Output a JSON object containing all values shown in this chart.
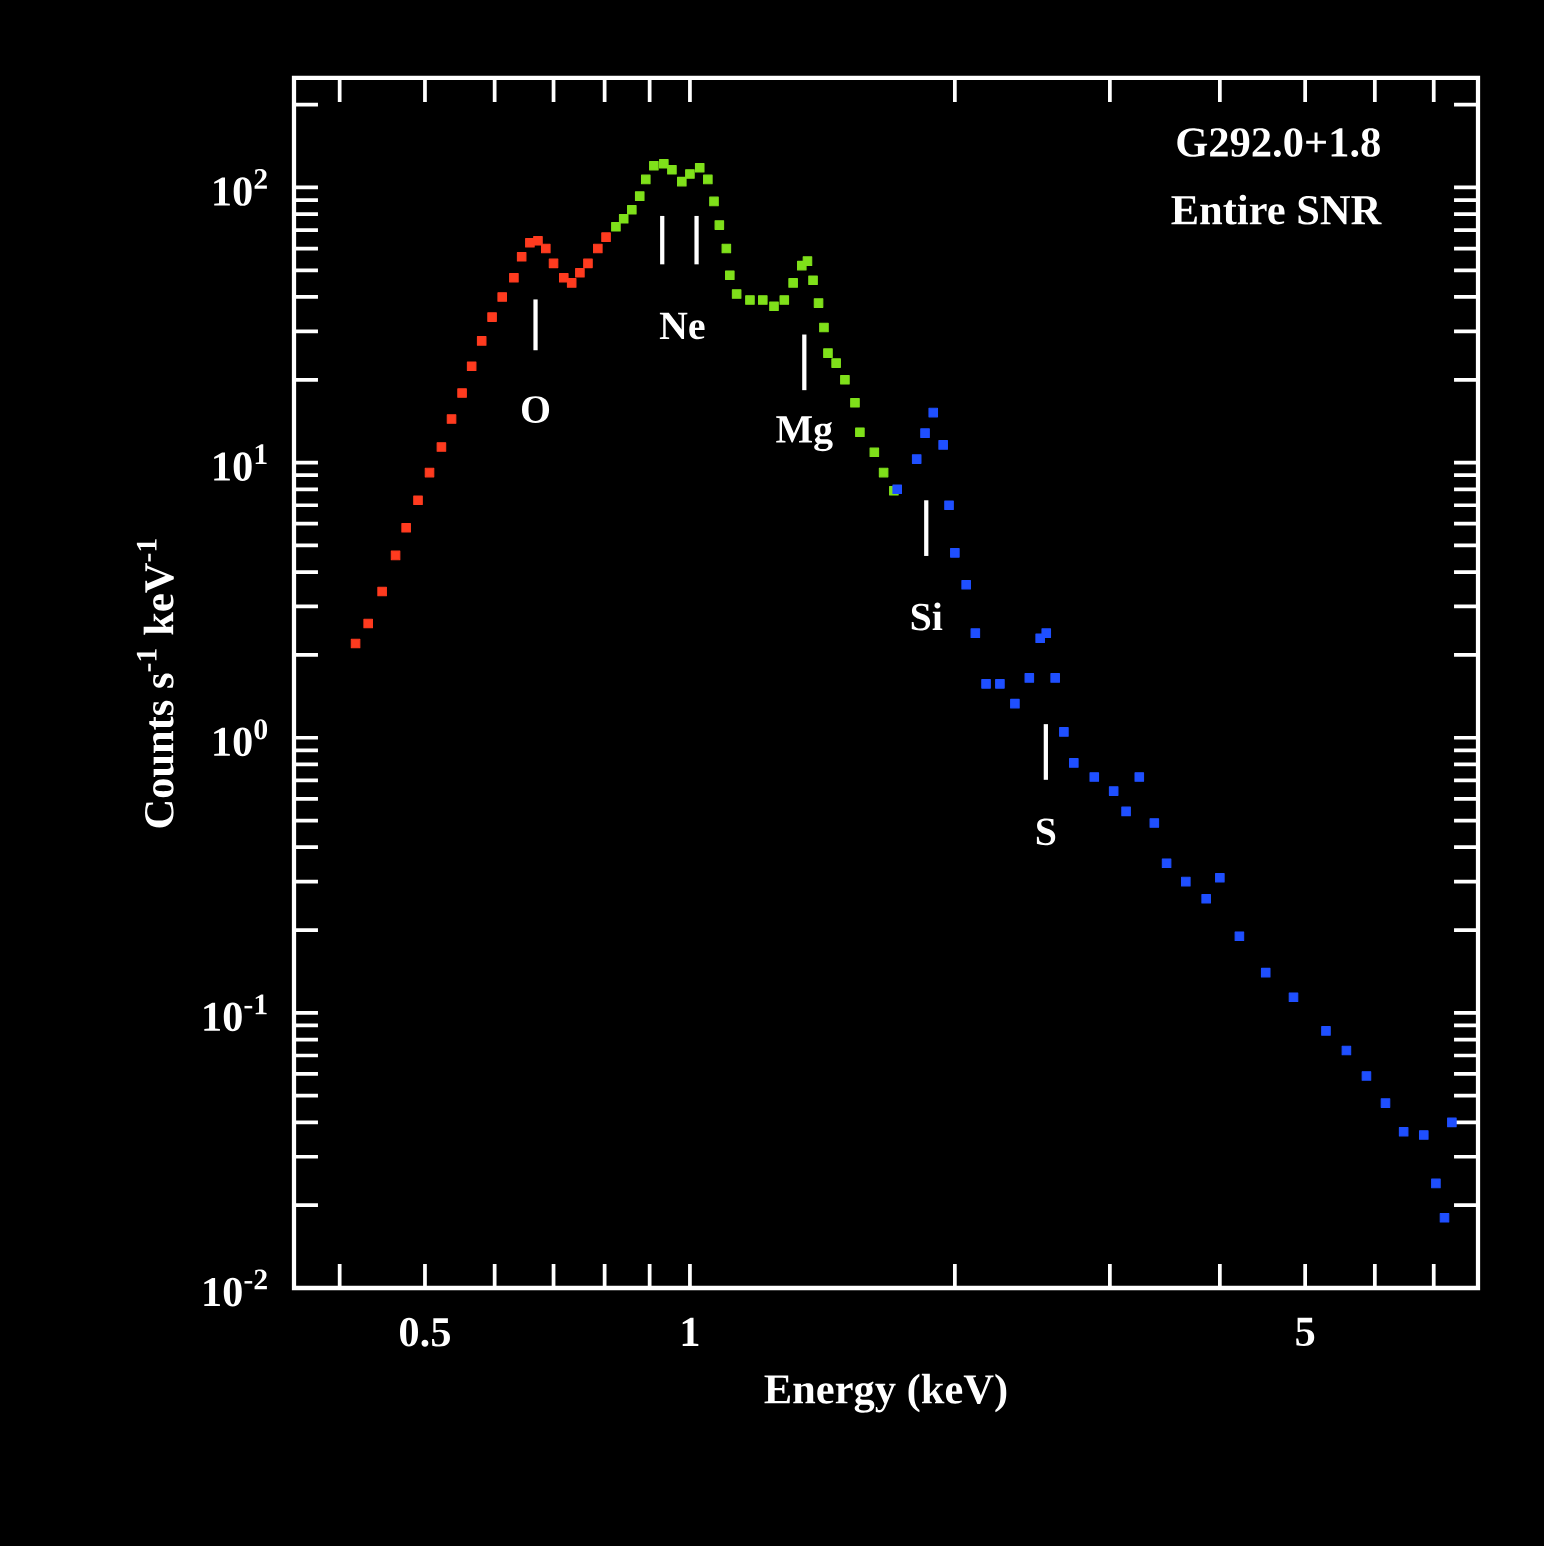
{
  "chart_data": {
    "type": "scatter",
    "xlabel": "Energy (keV)",
    "ylabel": "Counts s$^{-1}$ keV$^{-1}$",
    "log": "xy",
    "grid": false,
    "marker": "square",
    "xlim": [
      0.355,
      7.86
    ],
    "ylim": [
      0.01,
      250
    ],
    "xticks": [
      {
        "value": 0.4,
        "label": null
      },
      {
        "value": 0.5,
        "label": "0.5"
      },
      {
        "value": 0.6,
        "label": null
      },
      {
        "value": 0.7,
        "label": null
      },
      {
        "value": 0.8,
        "label": null
      },
      {
        "value": 0.9,
        "label": null
      },
      1,
      {
        "value": 2,
        "label": null
      },
      {
        "value": 3,
        "label": null
      },
      {
        "value": 4,
        "label": null
      },
      5,
      {
        "value": 6,
        "label": null
      },
      {
        "value": 7,
        "label": null
      }
    ],
    "yticks": [
      {
        "value": 0.01,
        "label": "10$^{-2}$"
      },
      {
        "value": 0.02,
        "label": null
      },
      {
        "value": 0.03,
        "label": null
      },
      {
        "value": 0.04,
        "label": null
      },
      {
        "value": 0.05,
        "label": null
      },
      {
        "value": 0.06,
        "label": null
      },
      {
        "value": 0.07,
        "label": null
      },
      {
        "value": 0.08,
        "label": null
      },
      {
        "value": 0.09,
        "label": null
      },
      {
        "value": 0.1,
        "label": "10$^{-1}$"
      },
      {
        "value": 0.2,
        "label": null
      },
      {
        "value": 0.3,
        "label": null
      },
      {
        "value": 0.4,
        "label": null
      },
      {
        "value": 0.5,
        "label": null
      },
      {
        "value": 0.6,
        "label": null
      },
      {
        "value": 0.7,
        "label": null
      },
      {
        "value": 0.8,
        "label": null
      },
      {
        "value": 0.9,
        "label": null
      },
      {
        "value": 1,
        "label": "10$^{0}$"
      },
      {
        "value": 2,
        "label": null
      },
      {
        "value": 3,
        "label": null
      },
      {
        "value": 4,
        "label": null
      },
      {
        "value": 5,
        "label": null
      },
      {
        "value": 6,
        "label": null
      },
      {
        "value": 7,
        "label": null
      },
      {
        "value": 8,
        "label": null
      },
      {
        "value": 9,
        "label": null
      },
      {
        "value": 10,
        "label": "10$^{1}$"
      },
      {
        "value": 20,
        "label": null
      },
      {
        "value": 30,
        "label": null
      },
      {
        "value": 40,
        "label": null
      },
      {
        "value": 50,
        "label": null
      },
      {
        "value": 60,
        "label": null
      },
      {
        "value": 70,
        "label": null
      },
      {
        "value": 80,
        "label": null
      },
      {
        "value": 90,
        "label": null
      },
      {
        "value": 100,
        "label": "10$^{2}$"
      },
      {
        "value": 200,
        "label": null
      }
    ],
    "series": [
      {
        "color": "#ff3b1f",
        "x": [
          0.417,
          0.431,
          0.447,
          0.463,
          0.476,
          0.491,
          0.506,
          0.522,
          0.536,
          0.551,
          0.565,
          0.58,
          0.596,
          0.612,
          0.631,
          0.644,
          0.658,
          0.672,
          0.686,
          0.7,
          0.719,
          0.734,
          0.75,
          0.766,
          0.786,
          0.803
        ],
        "values": [
          2.2,
          2.6,
          3.4,
          4.6,
          5.8,
          7.3,
          9.2,
          11.4,
          14.4,
          17.9,
          22.4,
          27.7,
          33.8,
          40,
          47,
          56,
          63,
          64,
          60,
          53,
          47,
          45,
          49,
          53,
          60,
          66
        ]
      },
      {
        "color": "#7fe01a",
        "x": [
          0.824,
          0.841,
          0.859,
          0.877,
          0.891,
          0.91,
          0.934,
          0.954,
          0.979,
          1.0,
          1.026,
          1.048,
          1.065,
          1.08,
          1.1,
          1.11,
          1.13,
          1.17,
          1.21,
          1.246,
          1.28,
          1.31,
          1.34,
          1.36,
          1.38,
          1.4,
          1.42,
          1.435,
          1.466,
          1.5,
          1.54,
          1.56,
          1.62,
          1.66,
          1.705
        ],
        "values": [
          72,
          77,
          83,
          93,
          107,
          120,
          122,
          116,
          105,
          112,
          118,
          107,
          89,
          73,
          60,
          48,
          41,
          39,
          39,
          37,
          39,
          45,
          52,
          54,
          46,
          38,
          31,
          25,
          23,
          20,
          16.5,
          12.9,
          10.9,
          9.2,
          7.9
        ]
      },
      {
        "color": "#1f4fff",
        "x": [
          1.72,
          1.81,
          1.85,
          1.89,
          1.94,
          1.97,
          2.0,
          2.06,
          2.11,
          2.17,
          2.25,
          2.34,
          2.43,
          2.5,
          2.54,
          2.6,
          2.66,
          2.73,
          2.88,
          3.03,
          3.13,
          3.24,
          3.37,
          3.48,
          3.66,
          3.86,
          4.0,
          4.21,
          4.51,
          4.85,
          5.28,
          5.57,
          5.87,
          6.17,
          6.47,
          6.82,
          7.04,
          7.2,
          7.34
        ],
        "values": [
          8.0,
          10.3,
          12.8,
          15.2,
          11.6,
          7.0,
          4.7,
          3.6,
          2.4,
          1.57,
          1.57,
          1.33,
          1.65,
          2.3,
          2.4,
          1.65,
          1.05,
          0.81,
          0.72,
          0.64,
          0.54,
          0.72,
          0.49,
          0.35,
          0.3,
          0.26,
          0.31,
          0.19,
          0.14,
          0.114,
          0.086,
          0.073,
          0.059,
          0.047,
          0.037,
          0.036,
          0.024,
          0.018,
          0.04
        ]
      }
    ],
    "annotations": [
      "G292.0+1.8",
      "Entire SNR",
      "O",
      "Ne",
      "Mg",
      "Si",
      "S"
    ]
  }
}
